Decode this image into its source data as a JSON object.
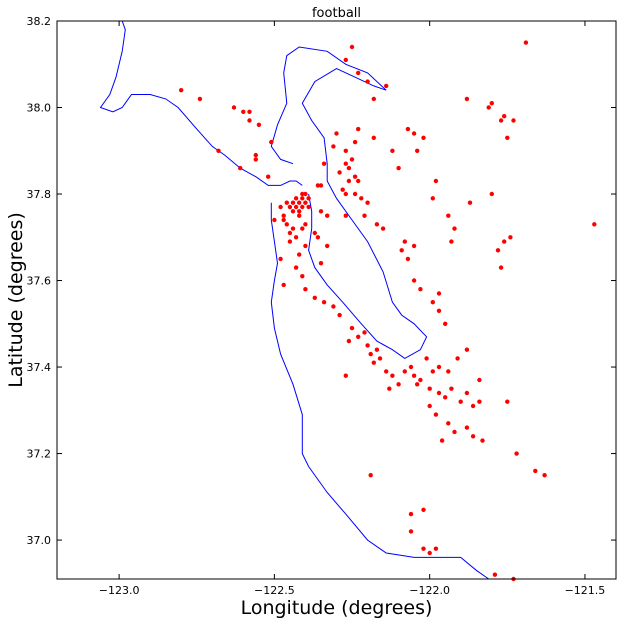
{
  "chart_data": {
    "type": "scatter",
    "title": "football",
    "xlabel": "Longitude (degrees)",
    "ylabel": "Latitude (degrees)",
    "xlim": [
      -123.2,
      -121.4
    ],
    "ylim": [
      36.91,
      38.2
    ],
    "xticks": [
      {
        "value": -123.0,
        "label": "−123.0"
      },
      {
        "value": -122.5,
        "label": "−122.5"
      },
      {
        "value": -122.0,
        "label": "−122.0"
      },
      {
        "value": -121.5,
        "label": "−121.5"
      }
    ],
    "yticks": [
      {
        "value": 37.0,
        "label": "37.0"
      },
      {
        "value": 37.2,
        "label": "37.2"
      },
      {
        "value": 37.4,
        "label": "37.4"
      },
      {
        "value": 37.6,
        "label": "37.6"
      },
      {
        "value": 37.8,
        "label": "37.8"
      },
      {
        "value": 38.0,
        "label": "38.0"
      },
      {
        "value": 38.2,
        "label": "38.2"
      }
    ],
    "grid": false,
    "coastline_color": "#0000ff",
    "point_color": "#ff0000",
    "coastline": [
      [
        [
          -122.99,
          38.2
        ],
        [
          -122.98,
          38.18
        ],
        [
          -122.99,
          38.13
        ],
        [
          -123.01,
          38.07
        ],
        [
          -123.03,
          38.03
        ],
        [
          -123.06,
          38.0
        ],
        [
          -123.02,
          37.99
        ],
        [
          -122.99,
          38.0
        ],
        [
          -122.96,
          38.03
        ],
        [
          -122.9,
          38.03
        ],
        [
          -122.85,
          38.02
        ],
        [
          -122.81,
          38.0
        ],
        [
          -122.75,
          37.95
        ],
        [
          -122.7,
          37.91
        ],
        [
          -122.66,
          37.89
        ],
        [
          -122.61,
          37.86
        ],
        [
          -122.56,
          37.84
        ],
        [
          -122.52,
          37.82
        ],
        [
          -122.48,
          37.82
        ],
        [
          -122.45,
          37.83
        ],
        [
          -122.43,
          37.83
        ],
        [
          -122.41,
          37.82
        ]
      ],
      [
        [
          -122.51,
          37.78
        ],
        [
          -122.51,
          37.74
        ],
        [
          -122.5,
          37.69
        ],
        [
          -122.49,
          37.64
        ],
        [
          -122.5,
          37.6
        ],
        [
          -122.51,
          37.55
        ],
        [
          -122.5,
          37.49
        ],
        [
          -122.48,
          37.43
        ],
        [
          -122.44,
          37.36
        ],
        [
          -122.41,
          37.29
        ],
        [
          -122.41,
          37.2
        ],
        [
          -122.39,
          37.17
        ],
        [
          -122.33,
          37.11
        ],
        [
          -122.27,
          37.06
        ],
        [
          -122.2,
          37.0
        ],
        [
          -122.14,
          36.97
        ],
        [
          -122.05,
          36.96
        ],
        [
          -121.95,
          36.96
        ],
        [
          -121.9,
          36.96
        ],
        [
          -121.85,
          36.93
        ],
        [
          -121.81,
          36.91
        ]
      ],
      [
        [
          -122.39,
          37.8
        ],
        [
          -122.38,
          37.76
        ],
        [
          -122.38,
          37.72
        ],
        [
          -122.39,
          37.67
        ],
        [
          -122.37,
          37.63
        ],
        [
          -122.33,
          37.59
        ],
        [
          -122.28,
          37.55
        ],
        [
          -122.22,
          37.5
        ],
        [
          -122.17,
          37.46
        ],
        [
          -122.12,
          37.44
        ],
        [
          -122.08,
          37.42
        ],
        [
          -122.03,
          37.44
        ],
        [
          -122.01,
          37.47
        ],
        [
          -122.05,
          37.5
        ],
        [
          -122.09,
          37.52
        ],
        [
          -122.12,
          37.55
        ],
        [
          -122.15,
          37.62
        ],
        [
          -122.2,
          37.69
        ],
        [
          -122.25,
          37.74
        ],
        [
          -122.3,
          37.79
        ],
        [
          -122.33,
          37.83
        ],
        [
          -122.33,
          37.87
        ],
        [
          -122.34,
          37.93
        ],
        [
          -122.38,
          37.97
        ],
        [
          -122.41,
          38.01
        ],
        [
          -122.37,
          38.06
        ],
        [
          -122.3,
          38.09
        ],
        [
          -122.24,
          38.07
        ],
        [
          -122.18,
          38.05
        ],
        [
          -122.14,
          38.04
        ],
        [
          -122.2,
          38.08
        ],
        [
          -122.27,
          38.1
        ],
        [
          -122.33,
          38.13
        ],
        [
          -122.42,
          38.14
        ],
        [
          -122.46,
          38.12
        ],
        [
          -122.47,
          38.08
        ],
        [
          -122.46,
          38.01
        ],
        [
          -122.49,
          37.96
        ],
        [
          -122.51,
          37.91
        ],
        [
          -122.48,
          37.88
        ],
        [
          -122.44,
          37.87
        ]
      ]
    ],
    "points": [
      [
        -122.42,
        37.78
      ],
      [
        -122.41,
        37.79
      ],
      [
        -122.4,
        37.78
      ],
      [
        -122.43,
        37.77
      ],
      [
        -122.44,
        37.78
      ],
      [
        -122.41,
        37.77
      ],
      [
        -122.39,
        37.77
      ],
      [
        -122.42,
        37.76
      ],
      [
        -122.4,
        37.8
      ],
      [
        -122.43,
        37.79
      ],
      [
        -122.45,
        37.77
      ],
      [
        -122.41,
        37.8
      ],
      [
        -122.44,
        37.76
      ],
      [
        -122.42,
        37.75
      ],
      [
        -122.46,
        37.78
      ],
      [
        -122.39,
        37.79
      ],
      [
        -122.48,
        37.77
      ],
      [
        -122.47,
        37.75
      ],
      [
        -122.46,
        37.73
      ],
      [
        -122.44,
        37.72
      ],
      [
        -122.41,
        37.72
      ],
      [
        -122.43,
        37.7
      ],
      [
        -122.4,
        37.68
      ],
      [
        -122.45,
        37.69
      ],
      [
        -122.42,
        37.66
      ],
      [
        -122.43,
        37.63
      ],
      [
        -122.41,
        37.61
      ],
      [
        -122.48,
        37.65
      ],
      [
        -122.47,
        37.59
      ],
      [
        -122.4,
        37.58
      ],
      [
        -122.37,
        37.56
      ],
      [
        -122.34,
        37.55
      ],
      [
        -122.31,
        37.54
      ],
      [
        -122.29,
        37.52
      ],
      [
        -122.25,
        37.49
      ],
      [
        -122.23,
        37.47
      ],
      [
        -122.2,
        37.45
      ],
      [
        -122.19,
        37.43
      ],
      [
        -122.17,
        37.44
      ],
      [
        -122.16,
        37.42
      ],
      [
        -122.18,
        37.41
      ],
      [
        -122.21,
        37.48
      ],
      [
        -122.26,
        37.46
      ],
      [
        -122.14,
        37.39
      ],
      [
        -122.12,
        37.38
      ],
      [
        -122.08,
        37.39
      ],
      [
        -122.05,
        37.38
      ],
      [
        -122.1,
        37.36
      ],
      [
        -122.06,
        37.4
      ],
      [
        -122.03,
        37.37
      ],
      [
        -122.0,
        37.35
      ],
      [
        -121.97,
        37.34
      ],
      [
        -121.95,
        37.33
      ],
      [
        -121.93,
        37.35
      ],
      [
        -121.9,
        37.32
      ],
      [
        -121.88,
        37.34
      ],
      [
        -121.86,
        37.31
      ],
      [
        -121.84,
        37.32
      ],
      [
        -121.97,
        37.4
      ],
      [
        -121.94,
        37.39
      ],
      [
        -121.98,
        37.29
      ],
      [
        -122.0,
        37.31
      ],
      [
        -121.94,
        37.27
      ],
      [
        -121.92,
        37.25
      ],
      [
        -121.88,
        37.26
      ],
      [
        -121.86,
        37.24
      ],
      [
        -121.83,
        37.23
      ],
      [
        -121.96,
        37.23
      ],
      [
        -121.99,
        37.39
      ],
      [
        -122.01,
        37.42
      ],
      [
        -122.04,
        37.36
      ],
      [
        -122.13,
        37.35
      ],
      [
        -122.27,
        37.38
      ],
      [
        -122.19,
        37.15
      ],
      [
        -122.06,
        37.06
      ],
      [
        -122.02,
        37.07
      ],
      [
        -122.06,
        37.02
      ],
      [
        -122.02,
        36.98
      ],
      [
        -122.0,
        36.97
      ],
      [
        -121.98,
        36.98
      ],
      [
        -121.79,
        36.92
      ],
      [
        -121.73,
        36.91
      ],
      [
        -121.66,
        37.16
      ],
      [
        -121.63,
        37.15
      ],
      [
        -121.72,
        37.2
      ],
      [
        -121.75,
        37.32
      ],
      [
        -121.84,
        37.37
      ],
      [
        -121.88,
        37.44
      ],
      [
        -121.91,
        37.42
      ],
      [
        -122.27,
        37.87
      ],
      [
        -122.26,
        37.86
      ],
      [
        -122.29,
        37.85
      ],
      [
        -122.25,
        37.88
      ],
      [
        -122.28,
        37.81
      ],
      [
        -122.24,
        37.8
      ],
      [
        -122.22,
        37.79
      ],
      [
        -122.27,
        37.8
      ],
      [
        -122.26,
        37.83
      ],
      [
        -122.23,
        37.83
      ],
      [
        -122.2,
        37.78
      ],
      [
        -122.21,
        37.75
      ],
      [
        -122.17,
        37.73
      ],
      [
        -122.15,
        37.72
      ],
      [
        -122.09,
        37.67
      ],
      [
        -122.07,
        37.65
      ],
      [
        -122.08,
        37.69
      ],
      [
        -122.05,
        37.68
      ],
      [
        -122.05,
        37.6
      ],
      [
        -122.03,
        37.58
      ],
      [
        -121.99,
        37.55
      ],
      [
        -121.97,
        37.57
      ],
      [
        -121.95,
        37.5
      ],
      [
        -121.97,
        37.53
      ],
      [
        -122.27,
        37.9
      ],
      [
        -122.3,
        37.94
      ],
      [
        -122.24,
        37.92
      ],
      [
        -122.24,
        37.84
      ],
      [
        -122.34,
        37.87
      ],
      [
        -122.31,
        37.91
      ],
      [
        -122.35,
        37.82
      ],
      [
        -122.33,
        37.75
      ],
      [
        -122.36,
        37.7
      ],
      [
        -122.33,
        37.68
      ],
      [
        -122.35,
        37.64
      ],
      [
        -122.04,
        37.9
      ],
      [
        -122.05,
        37.94
      ],
      [
        -122.02,
        37.93
      ],
      [
        -121.98,
        37.83
      ],
      [
        -121.99,
        37.79
      ],
      [
        -121.94,
        37.75
      ],
      [
        -121.93,
        37.69
      ],
      [
        -121.92,
        37.72
      ],
      [
        -121.87,
        37.78
      ],
      [
        -121.76,
        37.69
      ],
      [
        -121.78,
        37.67
      ],
      [
        -121.74,
        37.7
      ],
      [
        -121.77,
        37.63
      ],
      [
        -121.8,
        37.8
      ],
      [
        -122.27,
        38.11
      ],
      [
        -122.25,
        38.14
      ],
      [
        -122.23,
        38.08
      ],
      [
        -122.2,
        38.06
      ],
      [
        -122.18,
        38.02
      ],
      [
        -122.14,
        38.05
      ],
      [
        -122.23,
        37.95
      ],
      [
        -122.18,
        37.93
      ],
      [
        -122.12,
        37.9
      ],
      [
        -122.1,
        37.86
      ],
      [
        -122.07,
        37.95
      ],
      [
        -121.88,
        38.02
      ],
      [
        -121.81,
        38.0
      ],
      [
        -121.8,
        38.01
      ],
      [
        -121.76,
        37.98
      ],
      [
        -121.73,
        37.97
      ],
      [
        -121.77,
        37.97
      ],
      [
        -121.75,
        37.93
      ],
      [
        -121.69,
        38.15
      ],
      [
        -121.47,
        37.73
      ],
      [
        -122.6,
        37.99
      ],
      [
        -122.58,
        37.99
      ],
      [
        -122.63,
        38.0
      ],
      [
        -122.58,
        37.97
      ],
      [
        -122.55,
        37.96
      ],
      [
        -122.51,
        37.92
      ],
      [
        -122.56,
        37.88
      ],
      [
        -122.52,
        37.84
      ],
      [
        -122.74,
        38.02
      ],
      [
        -122.8,
        38.04
      ],
      [
        -122.68,
        37.9
      ],
      [
        -122.56,
        37.89
      ],
      [
        -122.61,
        37.86
      ],
      [
        -122.47,
        37.74
      ],
      [
        -122.45,
        37.71
      ],
      [
        -122.5,
        37.74
      ],
      [
        -122.4,
        37.73
      ],
      [
        -122.37,
        37.71
      ],
      [
        -122.35,
        37.76
      ],
      [
        -122.36,
        37.82
      ],
      [
        -122.27,
        37.75
      ]
    ]
  }
}
